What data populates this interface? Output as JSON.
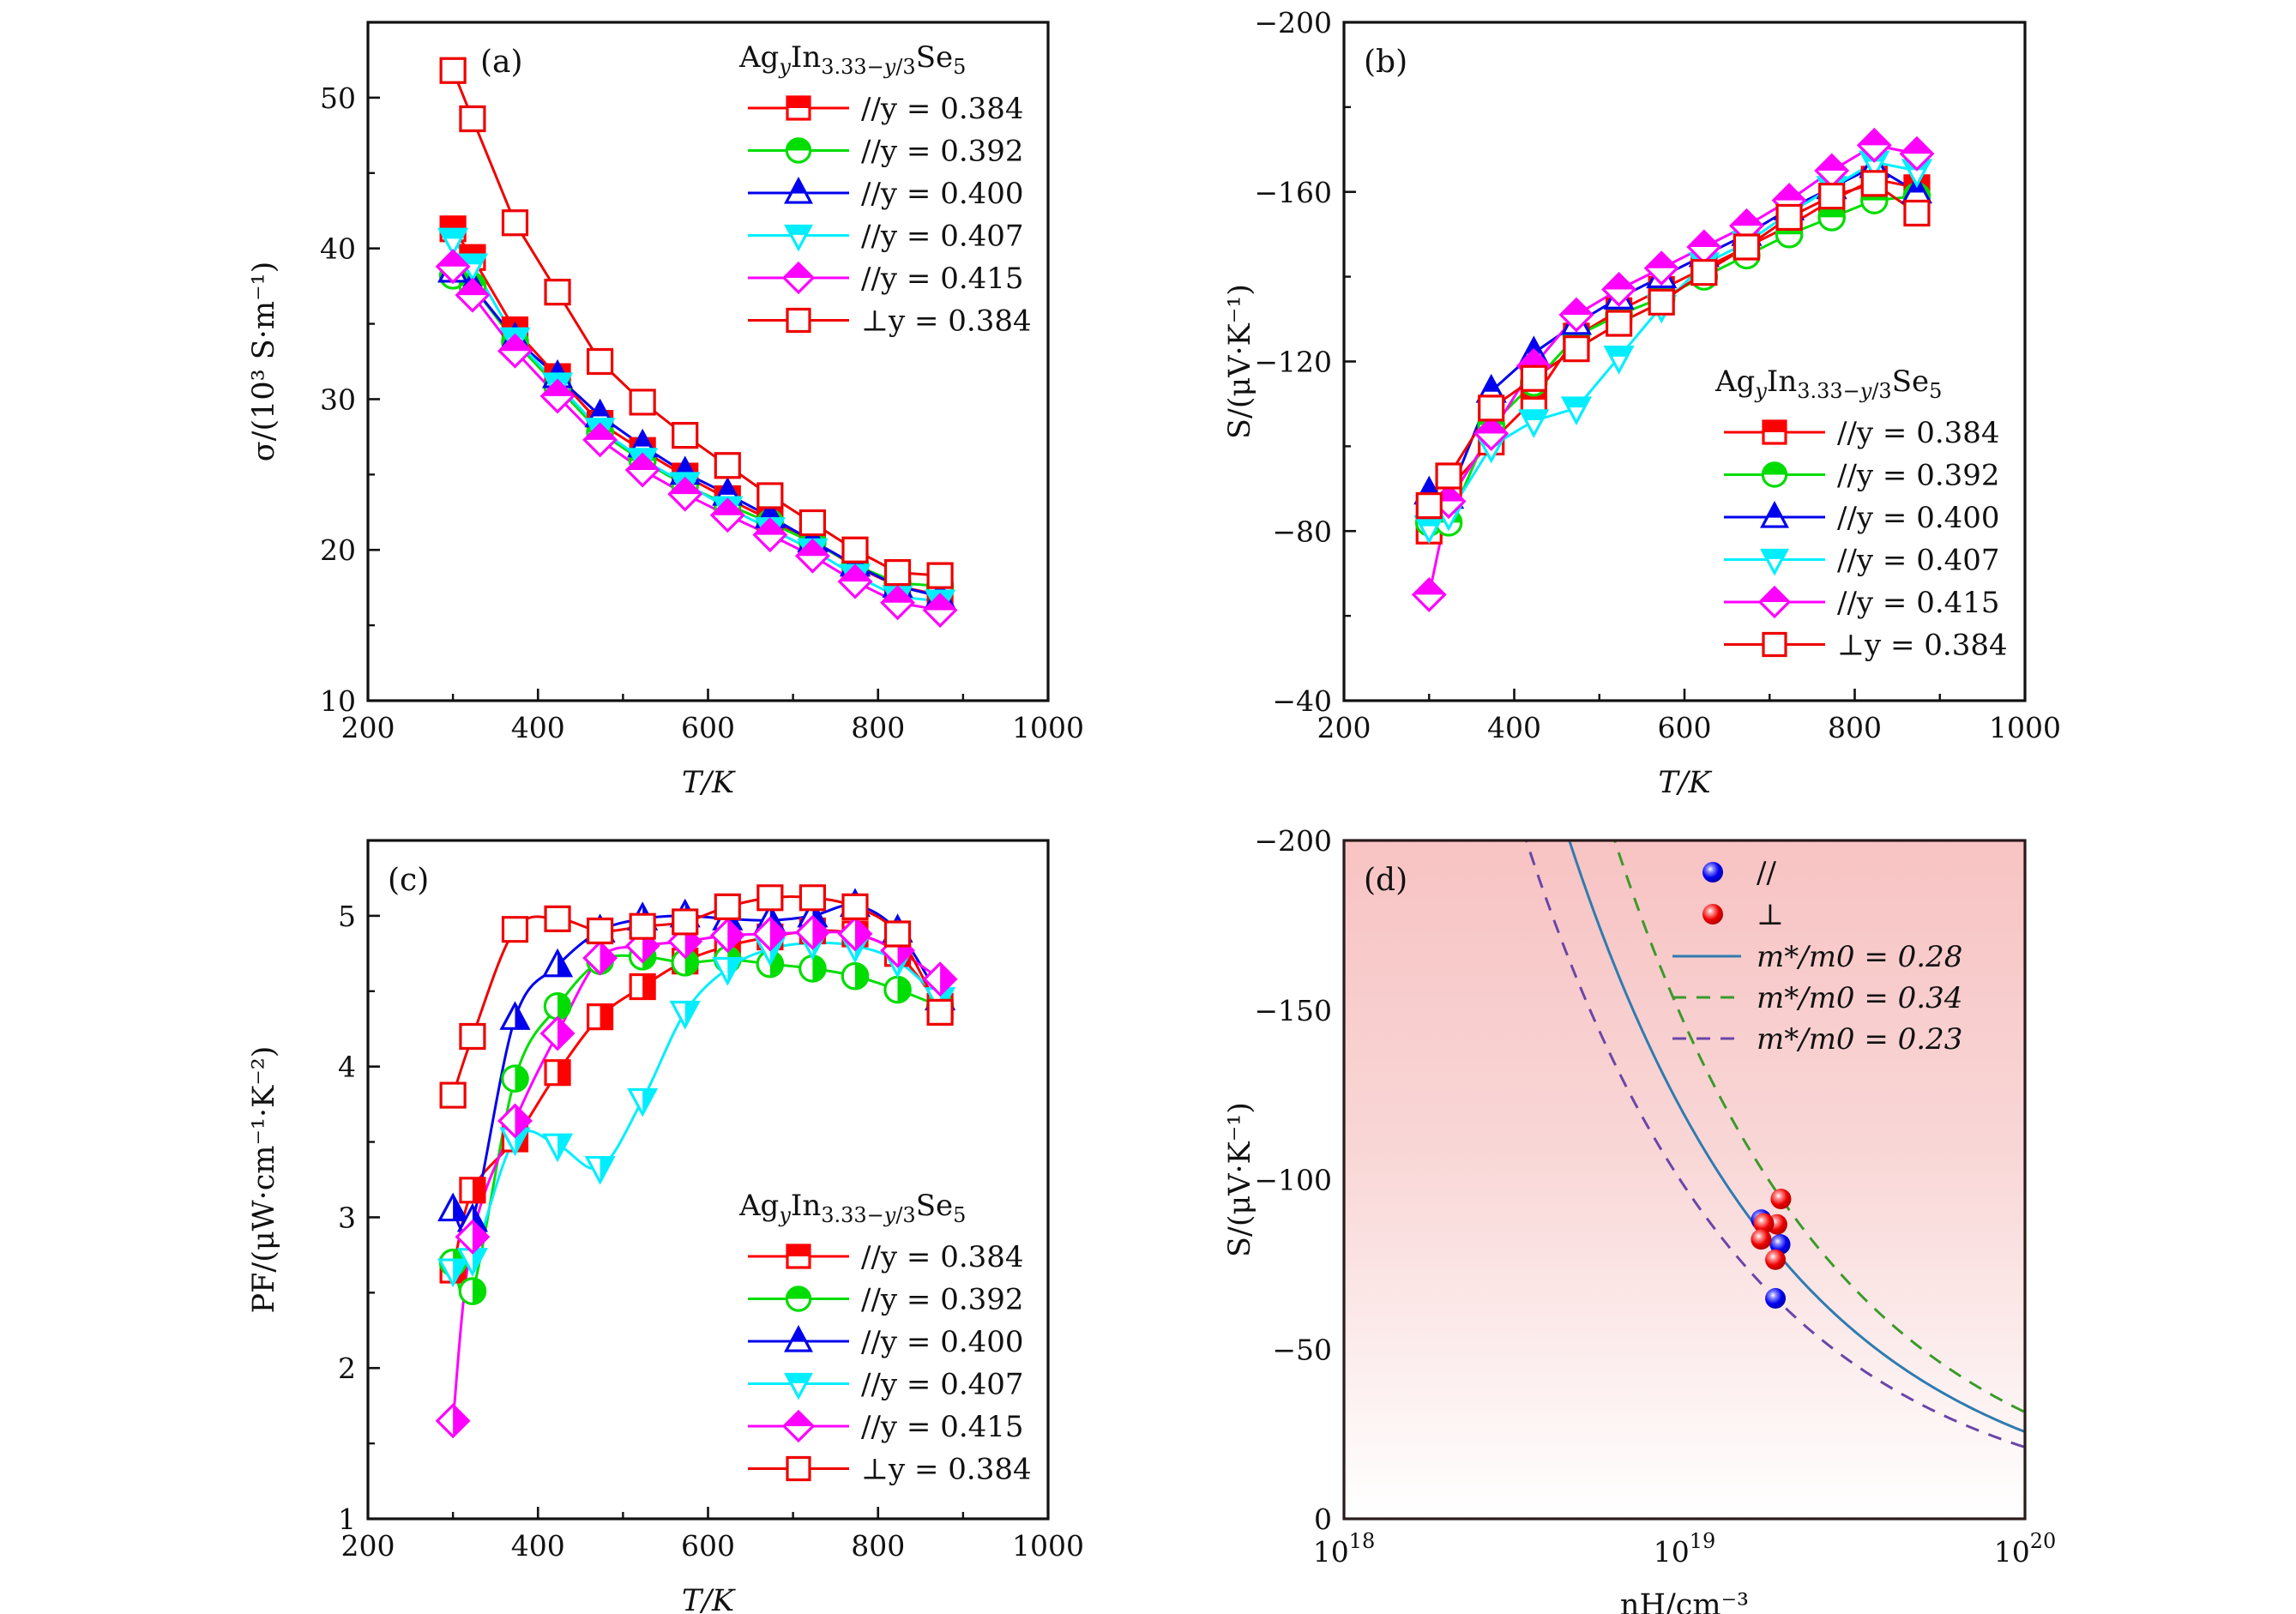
{
  "chart_data": [
    {
      "id": "a",
      "type": "line",
      "panel_label": "(a)",
      "title": "",
      "xlabel": "T/K",
      "ylabel": "σ/(10³ S·m⁻¹)",
      "xlim": [
        200,
        1000
      ],
      "ylim": [
        10,
        55
      ],
      "xticks": [
        200,
        400,
        600,
        800,
        1000
      ],
      "yticks": [
        10,
        20,
        30,
        40,
        50
      ],
      "x_minor_step": 100,
      "y_minor_step": 5,
      "legend": {
        "title": "AgyIn3.33−y/3Se5",
        "placement": "top-right"
      },
      "x": [
        300,
        323,
        373,
        423,
        473,
        523,
        573,
        623,
        673,
        723,
        773,
        823,
        873
      ],
      "series": [
        {
          "name": "//y = 0.384",
          "marker": "square",
          "fill": "top-half",
          "color": "#ff0000",
          "values": [
            41.3,
            39.4,
            34.6,
            31.5,
            28.4,
            26.6,
            24.9,
            23.4,
            22.0,
            20.6,
            18.9,
            17.6,
            17.0
          ]
        },
        {
          "name": "//y = 0.392",
          "marker": "circle",
          "fill": "top-half",
          "color": "#00dd00",
          "values": [
            38.2,
            37.5,
            33.8,
            30.8,
            27.8,
            25.9,
            24.3,
            23.0,
            21.8,
            20.5,
            19.0,
            17.8,
            17.6
          ]
        },
        {
          "name": "//y = 0.400",
          "marker": "triangle-up",
          "fill": "top-half",
          "color": "#0000ee",
          "values": [
            38.5,
            37.5,
            34.0,
            31.5,
            28.9,
            26.9,
            25.1,
            23.7,
            22.2,
            20.6,
            19.0,
            17.6,
            16.9
          ]
        },
        {
          "name": "//y = 0.407",
          "marker": "triangle-down",
          "fill": "top-half",
          "color": "#00eeff",
          "values": [
            40.6,
            38.9,
            34.0,
            31.0,
            28.0,
            26.0,
            24.4,
            22.8,
            21.4,
            20.0,
            18.3,
            16.9,
            16.6
          ]
        },
        {
          "name": "//y = 0.415",
          "marker": "diamond",
          "fill": "top-half",
          "color": "#ff00ff",
          "values": [
            38.8,
            36.9,
            33.2,
            30.2,
            27.3,
            25.3,
            23.7,
            22.3,
            21.0,
            19.6,
            17.9,
            16.5,
            16.0
          ]
        },
        {
          "name": "⊥y = 0.384",
          "marker": "square",
          "fill": "none",
          "color": "#ee0000",
          "values": [
            51.8,
            48.6,
            41.7,
            37.1,
            32.5,
            29.8,
            27.6,
            25.6,
            23.6,
            21.8,
            20.0,
            18.5,
            18.3
          ]
        }
      ]
    },
    {
      "id": "b",
      "type": "line",
      "panel_label": "(b)",
      "title": "",
      "xlabel": "T/K",
      "ylabel": "S/(μV·K⁻¹)",
      "xlim": [
        200,
        1000
      ],
      "ylim": [
        -40,
        -200
      ],
      "xticks": [
        200,
        400,
        600,
        800,
        1000
      ],
      "yticks": [
        -40,
        -80,
        -120,
        -160,
        -200
      ],
      "ytick_labels": [
        "−40",
        "−80",
        "−120",
        "−160",
        "−200"
      ],
      "x_minor_step": 100,
      "y_minor_step": 20,
      "legend": {
        "title": "AgyIn3.33−y/3Se5",
        "placement": "bottom-right"
      },
      "x": [
        300,
        323,
        373,
        423,
        473,
        523,
        573,
        623,
        673,
        723,
        773,
        823,
        873
      ],
      "series": [
        {
          "name": "//y = 0.384",
          "marker": "square",
          "fill": "top-half",
          "color": "#ff0000",
          "values": [
            -80,
            -90,
            -101,
            -111,
            -126,
            -132,
            -137,
            -142,
            -147,
            -152,
            -158,
            -163,
            -161
          ]
        },
        {
          "name": "//y = 0.392",
          "marker": "circle",
          "fill": "top-half",
          "color": "#00dd00",
          "values": [
            -82,
            -82,
            -105,
            -115,
            -126,
            -131,
            -135,
            -140,
            -145,
            -150,
            -154,
            -158,
            -159
          ]
        },
        {
          "name": "//y = 0.400",
          "marker": "triangle-up",
          "fill": "top-half",
          "color": "#0000ee",
          "values": [
            -89,
            -88,
            -113,
            -122,
            -129,
            -135,
            -140,
            -145,
            -150,
            -156,
            -161,
            -166,
            -160
          ]
        },
        {
          "name": "//y = 0.407",
          "marker": "triangle-down",
          "fill": "top-half",
          "color": "#00eeff",
          "values": [
            -81,
            -84,
            -100,
            -106,
            -109,
            -121,
            -133,
            -143,
            -148,
            -155,
            -161,
            -167,
            -165
          ]
        },
        {
          "name": "//y = 0.415",
          "marker": "diamond",
          "fill": "top-half",
          "color": "#ff00ff",
          "values": [
            -65,
            -87,
            -103,
            -119,
            -131,
            -137,
            -142,
            -147,
            -152,
            -158,
            -165,
            -171,
            -169
          ]
        },
        {
          "name": "⊥y = 0.384",
          "marker": "square",
          "fill": "none",
          "color": "#ee0000",
          "values": [
            -86,
            -93,
            -109,
            -116,
            -123,
            -129,
            -134,
            -141,
            -147,
            -154,
            -159,
            -162,
            -155
          ]
        }
      ]
    },
    {
      "id": "c",
      "type": "line",
      "panel_label": "(c)",
      "title": "",
      "xlabel": "T/K",
      "ylabel": "PF/(μW·cm⁻¹·K⁻²)",
      "xlim": [
        200,
        1000
      ],
      "ylim": [
        1,
        5.5
      ],
      "xticks": [
        200,
        400,
        600,
        800,
        1000
      ],
      "yticks": [
        1,
        2,
        3,
        4,
        5
      ],
      "x_minor_step": 100,
      "y_minor_step": 0.5,
      "smooth": true,
      "legend": {
        "title": "AgyIn3.33−y/3Se5",
        "placement": "bottom-right"
      },
      "x": [
        300,
        323,
        373,
        423,
        473,
        523,
        573,
        623,
        673,
        723,
        773,
        823,
        873
      ],
      "series": [
        {
          "name": "//y = 0.384",
          "marker": "square",
          "fill": "top-half",
          "plot_fill": "right-half",
          "color": "#ff0000",
          "values": [
            2.65,
            3.18,
            3.52,
            3.96,
            4.33,
            4.53,
            4.7,
            4.8,
            4.86,
            4.9,
            4.88,
            4.75,
            4.4
          ]
        },
        {
          "name": "//y = 0.392",
          "marker": "circle",
          "fill": "top-half",
          "plot_fill": "right-half",
          "color": "#00dd00",
          "values": [
            2.7,
            2.51,
            3.92,
            4.4,
            4.7,
            4.73,
            4.69,
            4.71,
            4.68,
            4.65,
            4.6,
            4.51,
            4.4
          ]
        },
        {
          "name": "//y = 0.400",
          "marker": "triangle-up",
          "fill": "top-half",
          "plot_fill": "right-half",
          "color": "#0000ee",
          "values": [
            3.05,
            2.98,
            4.32,
            4.67,
            4.9,
            4.98,
            5.0,
            4.98,
            4.97,
            5.0,
            5.07,
            4.9,
            4.45
          ]
        },
        {
          "name": "//y = 0.407",
          "marker": "triangle-down",
          "fill": "top-half",
          "plot_fill": "right-half",
          "color": "#00eeff",
          "values": [
            2.65,
            2.72,
            3.52,
            3.48,
            3.33,
            3.78,
            4.36,
            4.65,
            4.78,
            4.82,
            4.8,
            4.7,
            4.45
          ]
        },
        {
          "name": "//y = 0.415",
          "marker": "diamond",
          "fill": "top-half",
          "plot_fill": "right-half",
          "color": "#ff00ff",
          "values": [
            1.65,
            2.87,
            3.64,
            4.22,
            4.72,
            4.8,
            4.83,
            4.87,
            4.88,
            4.89,
            4.88,
            4.77,
            4.58
          ]
        },
        {
          "name": "⊥y = 0.384",
          "marker": "square",
          "fill": "none",
          "color": "#ee0000",
          "values": [
            3.81,
            4.2,
            4.91,
            4.98,
            4.9,
            4.93,
            4.96,
            5.06,
            5.12,
            5.12,
            5.06,
            4.88,
            4.36
          ]
        }
      ]
    },
    {
      "id": "d",
      "type": "scatter",
      "panel_label": "(d)",
      "title": "",
      "xlabel": "nH/cm⁻³",
      "ylabel": "S/(μV·K⁻¹)",
      "xscale": "log",
      "xlim": [
        1e+18,
        1e+20
      ],
      "ylim": [
        0,
        -200
      ],
      "xticks": [
        1e+18,
        1e+19,
        1e+20
      ],
      "xtick_labels": [
        {
          "base": "10",
          "exp": "18"
        },
        {
          "base": "10",
          "exp": "19"
        },
        {
          "base": "10",
          "exp": "20"
        }
      ],
      "yticks": [
        0,
        -50,
        -100,
        -150,
        -200
      ],
      "ytick_labels": [
        "0",
        "−50",
        "−100",
        "−150",
        "−200"
      ],
      "background": {
        "type": "vertical-gradient",
        "top": "#f8c3c3",
        "bottom": "#ffffff"
      },
      "legend": {
        "placement": "top-right"
      },
      "scatter_series": [
        {
          "name": "//",
          "color": "#0000ee",
          "points": [
            [
              1.68e+19,
              -88.2
            ],
            [
              1.91e+19,
              -80.9
            ],
            [
              1.85e+19,
              -65.0
            ]
          ]
        },
        {
          "name": "⊥",
          "color": "#ee0000",
          "points": [
            [
              1.92e+19,
              -94.3
            ],
            [
              1.87e+19,
              -86.8
            ],
            [
              1.71e+19,
              -87.1
            ],
            [
              1.68e+19,
              -82.4
            ],
            [
              1.85e+19,
              -76.4
            ]
          ]
        }
      ],
      "curves": [
        {
          "name": "m*/m0 = 0.28",
          "label_var": "m*/m0",
          "label_value": "0.28",
          "style": "solid",
          "color": "#2f7bb0",
          "model": "S = -C*(n/1e19)^(-2/3)",
          "C": 119
        },
        {
          "name": "m*/m0 = 0.34",
          "label_var": "m*/m0",
          "label_value": "0.34",
          "style": "dashed",
          "color": "#3a9a2a",
          "model": "S = -C*(n/1e19)^(-2/3)",
          "C": 146
        },
        {
          "name": "m*/m0 = 0.23",
          "label_var": "m*/m0",
          "label_value": "0.23",
          "style": "dashed",
          "color": "#6a45a8",
          "model": "S = -C*(n/1e19)^(-2/3)",
          "C": 98
        }
      ]
    }
  ]
}
